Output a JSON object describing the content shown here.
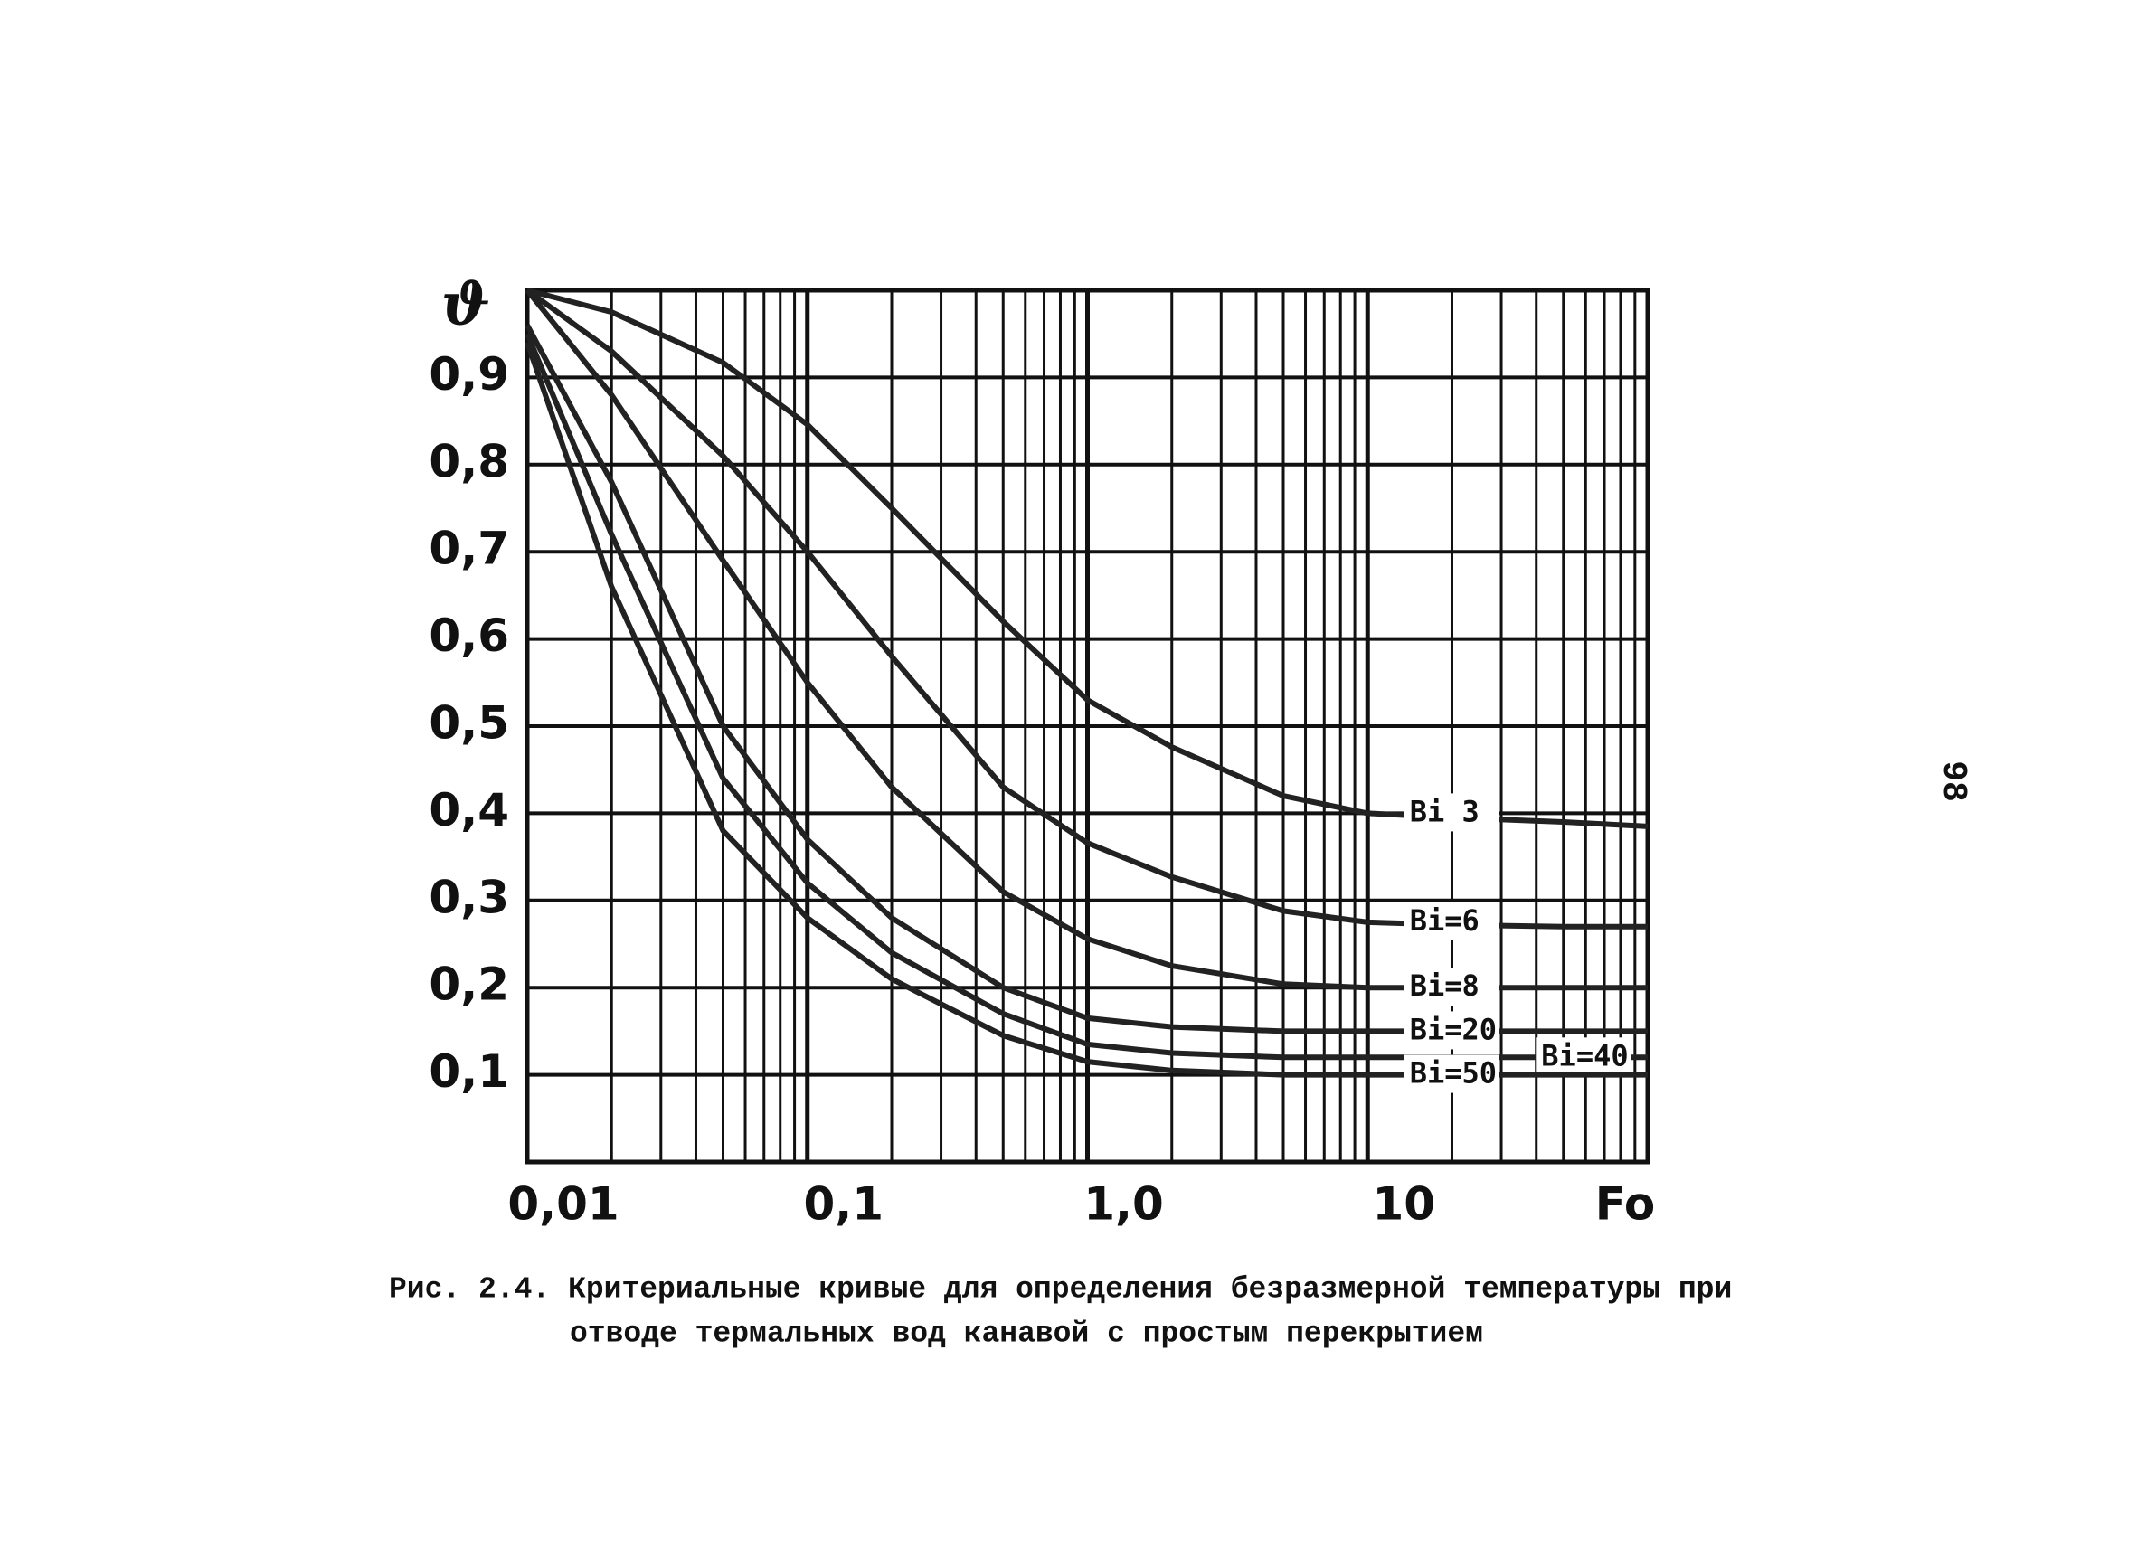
{
  "chart_data": {
    "type": "line",
    "ylabel": "ϑ",
    "xlabel": "Fo",
    "caption": [
      "Рис. 2.4. Критериальные кривые для определения безразмерной температуры при",
      "отводе термальных вод канавой с простым перекрытием"
    ],
    "page_number": "98",
    "xscale": "log",
    "xlim": [
      0.01,
      100
    ],
    "ylim": [
      0,
      1
    ],
    "xticks": [
      {
        "value": 0.01,
        "label": "0,01"
      },
      {
        "value": 0.1,
        "label": "0,1"
      },
      {
        "value": 1,
        "label": "1,0"
      },
      {
        "value": 10,
        "label": "10"
      }
    ],
    "xminor": [
      0.02,
      0.03,
      0.04,
      0.05,
      0.06,
      0.07,
      0.08,
      0.09,
      0.2,
      0.3,
      0.4,
      0.5,
      0.6,
      0.7,
      0.8,
      0.9,
      2,
      3,
      4,
      5,
      6,
      7,
      8,
      9,
      20,
      30,
      40,
      50,
      60,
      70,
      80,
      90
    ],
    "yticks": [
      {
        "value": 0.1,
        "label": "0,1"
      },
      {
        "value": 0.2,
        "label": "0,2"
      },
      {
        "value": 0.3,
        "label": "0,3"
      },
      {
        "value": 0.4,
        "label": "0,4"
      },
      {
        "value": 0.5,
        "label": "0,5"
      },
      {
        "value": 0.6,
        "label": "0,6"
      },
      {
        "value": 0.7,
        "label": "0,7"
      },
      {
        "value": 0.8,
        "label": "0,8"
      },
      {
        "value": 0.9,
        "label": "0,9"
      }
    ],
    "grid": true,
    "x": [
      0.01,
      0.02,
      0.05,
      0.1,
      0.2,
      0.5,
      1,
      2,
      5,
      10,
      20,
      50,
      100
    ],
    "series": [
      {
        "name": "Bi 3",
        "color": "#222222",
        "values": [
          1.0,
          0.975,
          0.917,
          0.846,
          0.75,
          0.62,
          0.53,
          0.476,
          0.42,
          0.4,
          0.395,
          0.39,
          0.385
        ]
      },
      {
        "name": "Bi=6",
        "color": "#222222",
        "values": [
          1.0,
          0.93,
          0.81,
          0.7,
          0.58,
          0.43,
          0.366,
          0.327,
          0.288,
          0.275,
          0.272,
          0.27,
          0.27
        ]
      },
      {
        "name": "Bi=8",
        "color": "#222222",
        "values": [
          1.0,
          0.88,
          0.69,
          0.55,
          0.43,
          0.31,
          0.256,
          0.225,
          0.204,
          0.2,
          0.2,
          0.2,
          0.2
        ]
      },
      {
        "name": "Bi=20",
        "color": "#222222",
        "values": [
          0.96,
          0.78,
          0.5,
          0.37,
          0.28,
          0.2,
          0.165,
          0.155,
          0.15,
          0.15,
          0.15,
          0.15,
          0.15
        ]
      },
      {
        "name": "Bi=40",
        "color": "#222222",
        "values": [
          0.95,
          0.72,
          0.44,
          0.32,
          0.24,
          0.17,
          0.135,
          0.125,
          0.12,
          0.12,
          0.12,
          0.12,
          0.12
        ]
      },
      {
        "name": "Bi=50",
        "color": "#222222",
        "values": [
          0.94,
          0.66,
          0.38,
          0.28,
          0.21,
          0.145,
          0.115,
          0.105,
          0.1,
          0.1,
          0.1,
          0.1,
          0.1
        ]
      }
    ]
  }
}
